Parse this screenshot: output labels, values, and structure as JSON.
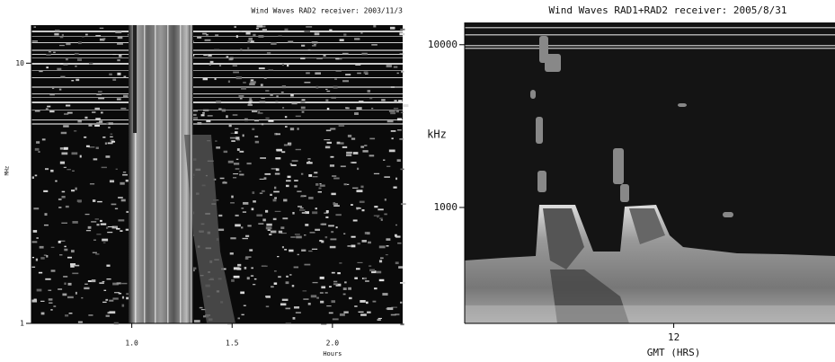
{
  "chart_data": [
    {
      "type": "spectrogram",
      "title": "Wind Waves RAD2 receiver: 2003/11/3",
      "xlabel": "Hours",
      "ylabel": "MHz",
      "xlim": [
        0.5,
        2.35
      ],
      "xticks": [
        {
          "value": 1,
          "label": "1.0"
        },
        1.5,
        {
          "value": 2,
          "label": "2.0"
        }
      ],
      "ylim": [
        1,
        14
      ],
      "yticks": [
        1,
        10
      ],
      "yscale": "log"
    },
    {
      "type": "spectrogram",
      "title": "Wind Waves RAD1+RAD2 receiver: 2005/8/31",
      "xlabel": "GMT (HRS)",
      "ylabel": "kHz",
      "xlim": [
        5,
        17.4
      ],
      "xticks": [
        12
      ],
      "ylim": [
        194,
        13700
      ],
      "yticks": [
        1000,
        10000
      ],
      "yscale": "log"
    }
  ]
}
